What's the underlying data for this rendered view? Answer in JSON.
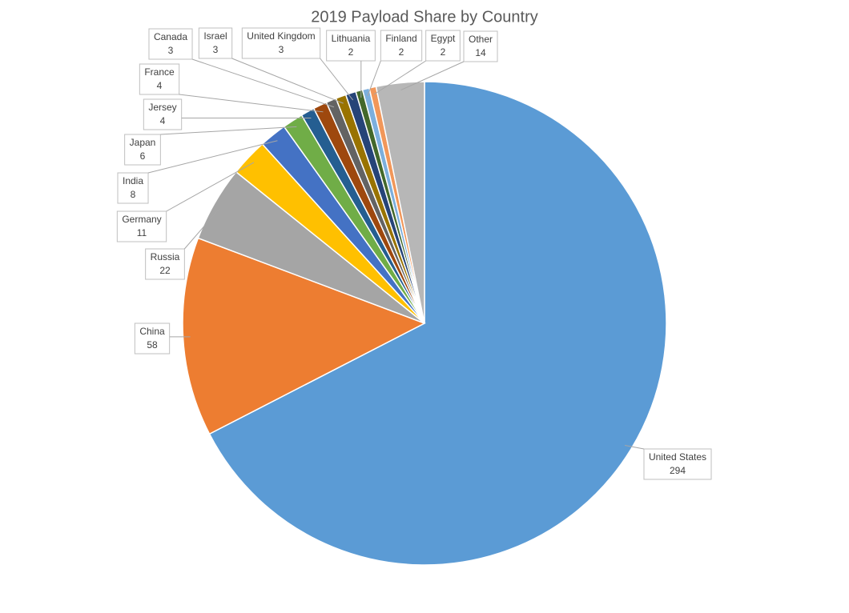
{
  "chart_data": {
    "type": "pie",
    "title": "2019 Payload Share by Country",
    "categories": [
      "United States",
      "China",
      "Russia",
      "Germany",
      "India",
      "Japan",
      "Jersey",
      "France",
      "Canada",
      "Israel",
      "United Kingdom",
      "Lithuania",
      "Finland",
      "Egypt",
      "Other"
    ],
    "values": [
      294,
      58,
      22,
      11,
      8,
      6,
      4,
      4,
      3,
      3,
      3,
      2,
      2,
      2,
      14
    ],
    "colors": [
      "#5b9bd5",
      "#ed7d31",
      "#a5a5a5",
      "#ffc000",
      "#4472c4",
      "#70ad47",
      "#255e91",
      "#9e480e",
      "#636363",
      "#997300",
      "#264478",
      "#43682b",
      "#7cafdd",
      "#f1975a",
      "#b7b7b7"
    ]
  }
}
